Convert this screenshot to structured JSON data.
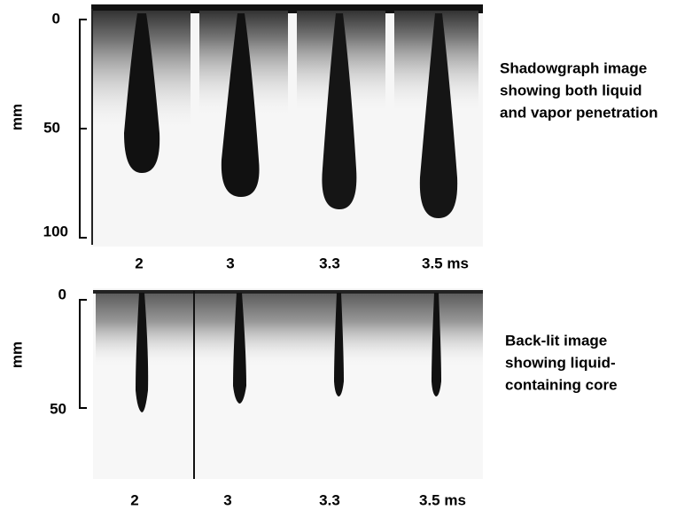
{
  "panels": [
    {
      "axis_label": "mm",
      "ticks": [
        "0",
        "50",
        "100"
      ],
      "times": [
        "2",
        "3",
        "3.3",
        "3.5 ms"
      ],
      "caption": [
        "Shadowgraph image",
        "showing both liquid",
        "and vapor penetration"
      ]
    },
    {
      "axis_label": "mm",
      "ticks": [
        "0",
        "50"
      ],
      "times": [
        "2",
        "3",
        "3.3",
        "3.5 ms"
      ],
      "caption": [
        "Back-lit image",
        "showing liquid-",
        "containing core"
      ]
    }
  ]
}
